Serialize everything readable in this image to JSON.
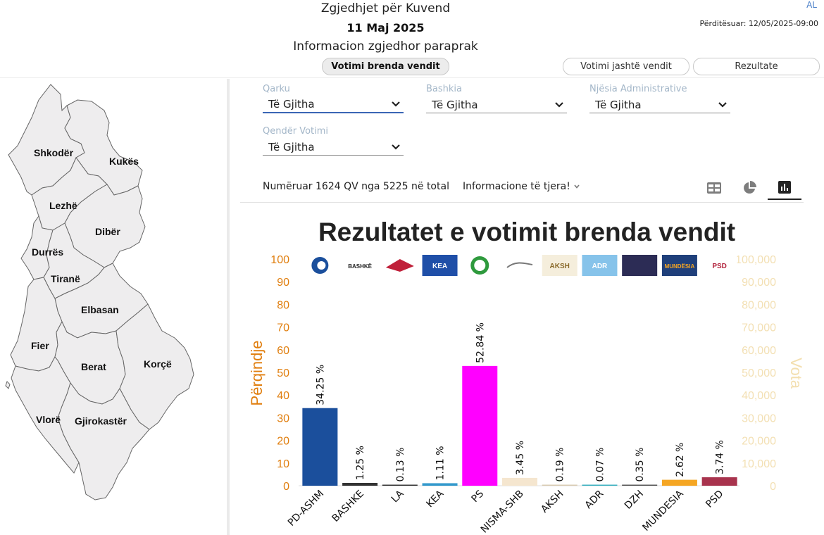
{
  "header": {
    "line1": "Zgjedhjet për Kuvend",
    "line2": "11 Maj 2025",
    "line3": "Informacion zgjedhor paraprak",
    "language": "AL",
    "updated": "Përditësuar: 12/05/2025-09:00"
  },
  "tabs": {
    "inside": "Votimi brenda vendit",
    "abroad": "Votimi jashtë vendit",
    "results": "Rezultate"
  },
  "map": {
    "regions": [
      "Shkodër",
      "Kukës",
      "Lezhë",
      "Dibër",
      "Durrës",
      "Tiranë",
      "Elbasan",
      "Fier",
      "Berat",
      "Korçë",
      "Vlorë",
      "Gjirokastër"
    ],
    "fill": "#eeedee"
  },
  "filters": {
    "qarku": {
      "label": "Qarku",
      "value": "Të Gjitha"
    },
    "bashkia": {
      "label": "Bashkia",
      "value": "Të Gjitha"
    },
    "njesia": {
      "label": "Njësia Administrative",
      "value": "Të Gjitha"
    },
    "qender": {
      "label": "Qendër Votimi",
      "value": "Të Gjitha"
    }
  },
  "stats": {
    "counted": "Numëruar 1624 QV nga 5225 në total",
    "other_info": "Informacione të tjera!"
  },
  "view_icons": [
    "table-icon",
    "pie-chart-icon",
    "bar-chart-icon"
  ],
  "chart_data": {
    "type": "bar",
    "title": "Rezultatet e votimit brenda vendit",
    "ylabel": "Përqindje",
    "y2label": "Vota",
    "ylim": [
      0,
      100
    ],
    "y2lim": [
      0,
      100000
    ],
    "yticks": [
      "0",
      "10",
      "20",
      "30",
      "40",
      "50",
      "60",
      "70",
      "80",
      "90",
      "100"
    ],
    "y2ticks": [
      "0",
      "10,000",
      "20,000",
      "30,000",
      "40,000",
      "50,000",
      "60,000",
      "70,000",
      "80,000",
      "90,000",
      "100,000"
    ],
    "categories": [
      "PD-ASHM",
      "BASHKE",
      "LA",
      "KEA",
      "PS",
      "NISMA-SHB",
      "AKSH",
      "ADR",
      "DZH",
      "MUNDESIA",
      "PSD"
    ],
    "values": [
      34.25,
      1.25,
      0.13,
      1.11,
      52.84,
      3.45,
      0.19,
      0.07,
      0.35,
      2.62,
      3.74
    ],
    "value_labels": [
      "34.25 %",
      "1.25 %",
      "0.13 %",
      "1.11 %",
      "52.84 %",
      "3.45 %",
      "0.19 %",
      "0.07 %",
      "0.35 %",
      "2.62 %",
      "3.74 %"
    ],
    "colors": [
      "#1b4f9c",
      "#333333",
      "#333333",
      "#3399cc",
      "#ff00ff",
      "#f5e6cf",
      "#d8cbb2",
      "#3ab0c0",
      "#555555",
      "#f5a623",
      "#a8334d"
    ],
    "logos": [
      "PD-ASHM logo",
      "BASHKË logo",
      "LA logo",
      "KEA logo",
      "NISMA-SHB logo",
      "SHB logo",
      "AKSH logo",
      "ADR logo",
      "DZH logo",
      "MUNDËSIA logo",
      "PSD logo"
    ],
    "logo_texts": [
      "",
      "BASHKË",
      "",
      "KEA",
      "",
      "",
      "AKSH",
      "ADR",
      "",
      "MUNDËSIA",
      "PSD"
    ],
    "axis_color": "#e07e0e",
    "axis2_color": "#f3dfb0",
    "grid": false
  }
}
